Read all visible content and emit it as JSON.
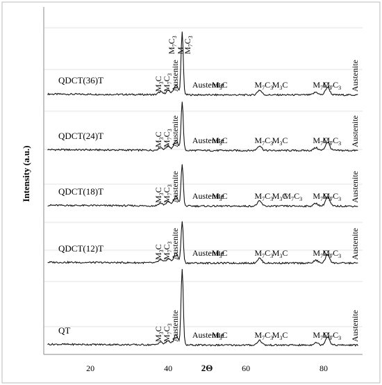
{
  "chart_data": {
    "type": "line",
    "title": "",
    "xlabel": "2Θ",
    "ylabel": "Intensity (a.u.)",
    "xlim": [
      8,
      90
    ],
    "xticks": [
      20,
      40,
      60,
      80
    ],
    "grid": "horizontal",
    "series": [
      {
        "name": "QDCT(36)T",
        "peaks": [
          {
            "x": 38.0,
            "h": 4
          },
          {
            "x": 40.0,
            "h": 6
          },
          {
            "x": 42.0,
            "h": 14
          },
          {
            "x": 43.6,
            "h": 90
          },
          {
            "x": 63.5,
            "h": 7
          },
          {
            "x": 78.0,
            "h": 4
          },
          {
            "x": 81.0,
            "h": 11
          }
        ],
        "labels": [
          {
            "x": 37.5,
            "text": "M",
            "sub": "3",
            "tail": "C",
            "rot": true
          },
          {
            "x": 39.6,
            "text": "M",
            "sub": "7",
            "tail": "C",
            "sub2": "3",
            "rot": true
          },
          {
            "x": 41.8,
            "text": "Austenite",
            "rot": true
          },
          {
            "x": 40.9,
            "text": "M",
            "sub": "7",
            "tail": "C",
            "sub2": "3",
            "rot": true,
            "high": true
          },
          {
            "x": 43.2,
            "text": "M",
            "rot": true,
            "high": true
          },
          {
            "x": 45.0,
            "text": "M",
            "sub": "7",
            "tail": "C",
            "sub2": "3",
            "rot": true,
            "high": true
          },
          {
            "x": 48.0,
            "text": "Austenite"
          },
          {
            "x": 53.0,
            "text": "M",
            "sub": "3",
            "tail": "C"
          },
          {
            "x": 64.0,
            "text": "M",
            "sub": "7",
            "tail": "C",
            "sub2": "3"
          },
          {
            "x": 68.5,
            "text": "M",
            "sub": "3",
            "tail": "C"
          },
          {
            "x": 79.0,
            "text": "M",
            "sub": "7",
            "tail": "C",
            "sub2": "3"
          },
          {
            "x": 81.5,
            "text": "M",
            "sub": "7",
            "tail": "C",
            "sub2": "3"
          },
          {
            "x": 88.0,
            "text": "Austenite",
            "rot": true
          }
        ]
      },
      {
        "name": "QDCT(24)T",
        "peaks": [
          {
            "x": 38.0,
            "h": 4
          },
          {
            "x": 40.0,
            "h": 6
          },
          {
            "x": 42.0,
            "h": 14
          },
          {
            "x": 43.6,
            "h": 70
          },
          {
            "x": 63.5,
            "h": 7
          },
          {
            "x": 78.0,
            "h": 4
          },
          {
            "x": 81.0,
            "h": 12
          }
        ],
        "labels": [
          {
            "x": 37.5,
            "text": "M",
            "sub": "3",
            "tail": "C",
            "rot": true
          },
          {
            "x": 39.6,
            "text": "M",
            "sub": "7",
            "tail": "C",
            "sub2": "3",
            "rot": true
          },
          {
            "x": 41.8,
            "text": "Austenite",
            "rot": true
          },
          {
            "x": 48.0,
            "text": "Austenite"
          },
          {
            "x": 53.0,
            "text": "M",
            "sub": "3",
            "tail": "C"
          },
          {
            "x": 64.0,
            "text": "M",
            "sub": "7",
            "tail": "C",
            "sub2": "3"
          },
          {
            "x": 68.5,
            "text": "M",
            "sub": "3",
            "tail": "C"
          },
          {
            "x": 79.0,
            "text": "M",
            "sub": "7",
            "tail": "C",
            "sub2": "3"
          },
          {
            "x": 81.5,
            "text": "M",
            "sub": "7",
            "tail": "C",
            "sub2": "3"
          },
          {
            "x": 88.0,
            "text": "Austenite",
            "rot": true
          }
        ]
      },
      {
        "name": "QDCT(18)T",
        "peaks": [
          {
            "x": 38.0,
            "h": 4
          },
          {
            "x": 40.0,
            "h": 6
          },
          {
            "x": 42.0,
            "h": 14
          },
          {
            "x": 43.6,
            "h": 60
          },
          {
            "x": 63.5,
            "h": 7
          },
          {
            "x": 78.0,
            "h": 4
          },
          {
            "x": 81.0,
            "h": 13
          }
        ],
        "labels": [
          {
            "x": 37.5,
            "text": "M",
            "sub": "3",
            "tail": "C",
            "rot": true
          },
          {
            "x": 39.6,
            "text": "M",
            "sub": "7",
            "tail": "C",
            "sub2": "3",
            "rot": true
          },
          {
            "x": 41.8,
            "text": "Austenite",
            "rot": true
          },
          {
            "x": 48.0,
            "text": "Austenite"
          },
          {
            "x": 53.0,
            "text": "M",
            "sub": "3",
            "tail": "C"
          },
          {
            "x": 64.0,
            "text": "M",
            "sub": "7",
            "tail": "C",
            "sub2": "3"
          },
          {
            "x": 68.5,
            "text": "M",
            "sub": "3",
            "tail": "C"
          },
          {
            "x": 71.5,
            "text": "M",
            "sub": "7",
            "tail": "C",
            "sub2": "3"
          },
          {
            "x": 79.0,
            "text": "M",
            "sub": "7",
            "tail": "C",
            "sub2": "3"
          },
          {
            "x": 81.5,
            "text": "M",
            "sub": "7",
            "tail": "C",
            "sub2": "3"
          },
          {
            "x": 88.0,
            "text": "Austenite",
            "rot": true
          }
        ]
      },
      {
        "name": "QDCT(12)T",
        "peaks": [
          {
            "x": 38.0,
            "h": 4
          },
          {
            "x": 40.0,
            "h": 6
          },
          {
            "x": 42.0,
            "h": 14
          },
          {
            "x": 43.6,
            "h": 60
          },
          {
            "x": 63.5,
            "h": 7
          },
          {
            "x": 78.0,
            "h": 4
          },
          {
            "x": 81.0,
            "h": 12
          }
        ],
        "labels": [
          {
            "x": 37.5,
            "text": "M",
            "sub": "3",
            "tail": "C",
            "rot": true
          },
          {
            "x": 39.6,
            "text": "M",
            "sub": "7",
            "tail": "C",
            "sub2": "3",
            "rot": true
          },
          {
            "x": 41.8,
            "text": "Austenite",
            "rot": true
          },
          {
            "x": 48.0,
            "text": "Austenite"
          },
          {
            "x": 53.0,
            "text": "M",
            "sub": "3",
            "tail": "C"
          },
          {
            "x": 64.0,
            "text": "M",
            "sub": "7",
            "tail": "C",
            "sub2": "3"
          },
          {
            "x": 68.5,
            "text": "M",
            "sub": "3",
            "tail": "C"
          },
          {
            "x": 79.0,
            "text": "M",
            "sub": "7",
            "tail": "C",
            "sub2": "3"
          },
          {
            "x": 81.5,
            "text": "M",
            "sub": "7",
            "tail": "C",
            "sub2": "3"
          },
          {
            "x": 88.0,
            "text": "Austenite",
            "rot": true
          }
        ]
      },
      {
        "name": "QT",
        "peaks": [
          {
            "x": 38.0,
            "h": 4
          },
          {
            "x": 40.0,
            "h": 6
          },
          {
            "x": 42.0,
            "h": 14
          },
          {
            "x": 43.6,
            "h": 110
          },
          {
            "x": 63.5,
            "h": 7
          },
          {
            "x": 78.0,
            "h": 4
          },
          {
            "x": 81.0,
            "h": 12
          }
        ],
        "labels": [
          {
            "x": 37.5,
            "text": "M",
            "sub": "3",
            "tail": "C",
            "rot": true
          },
          {
            "x": 39.6,
            "text": "M",
            "sub": "7",
            "tail": "C",
            "sub2": "3",
            "rot": true
          },
          {
            "x": 41.8,
            "text": "Austenite",
            "rot": true
          },
          {
            "x": 48.0,
            "text": "Austenite"
          },
          {
            "x": 53.0,
            "text": "M",
            "sub": "3",
            "tail": "C"
          },
          {
            "x": 64.0,
            "text": "M",
            "sub": "7",
            "tail": "C",
            "sub2": "3"
          },
          {
            "x": 68.5,
            "text": "M",
            "sub": "3",
            "tail": "C"
          },
          {
            "x": 79.0,
            "text": "M",
            "sub": "7",
            "tail": "C",
            "sub2": "3"
          },
          {
            "x": 81.5,
            "text": "M",
            "sub": "7",
            "tail": "C",
            "sub2": "3"
          },
          {
            "x": 88.0,
            "text": "Austenite",
            "rot": true
          }
        ]
      }
    ]
  }
}
